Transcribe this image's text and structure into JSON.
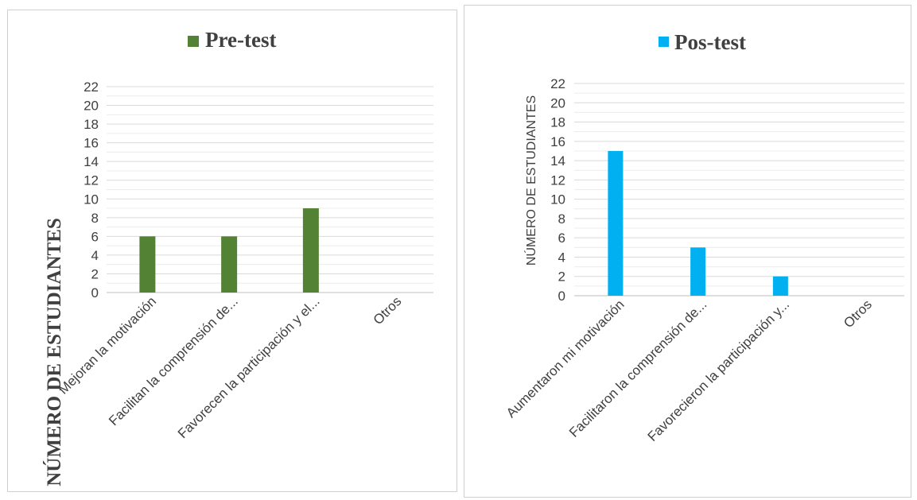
{
  "chart_data": [
    {
      "type": "bar",
      "legend": "Pre-test",
      "legend_position": "top",
      "ylabel": "NÚMERO DE ESTUDIANTES",
      "categories": [
        "Mejoran la motivación",
        "Facilitan la comprensión de...",
        "Favorecen la participación y el...",
        "Otros"
      ],
      "series": [
        {
          "name": "Pre-test",
          "values": [
            6,
            6,
            9,
            0
          ]
        }
      ],
      "color": "#548235",
      "ylim": [
        0,
        22
      ],
      "yticks": [
        0,
        2,
        4,
        6,
        8,
        10,
        12,
        14,
        16,
        18,
        20,
        22
      ],
      "minor_gridlines": true
    },
    {
      "type": "bar",
      "legend": "Pos-test",
      "legend_position": "top",
      "ylabel": "NÚMERO DE ESTUDIANTES",
      "categories": [
        "Aumentaron mi motivación",
        "Facilitaron la comprensión de...",
        "Favorecieron la participación y...",
        "Otros"
      ],
      "series": [
        {
          "name": "Pos-test",
          "values": [
            15,
            5,
            2,
            0
          ]
        }
      ],
      "color": "#00b0f0",
      "ylim": [
        0,
        22
      ],
      "yticks": [
        0,
        2,
        4,
        6,
        8,
        10,
        12,
        14,
        16,
        18,
        20,
        22
      ],
      "minor_gridlines": true
    }
  ]
}
